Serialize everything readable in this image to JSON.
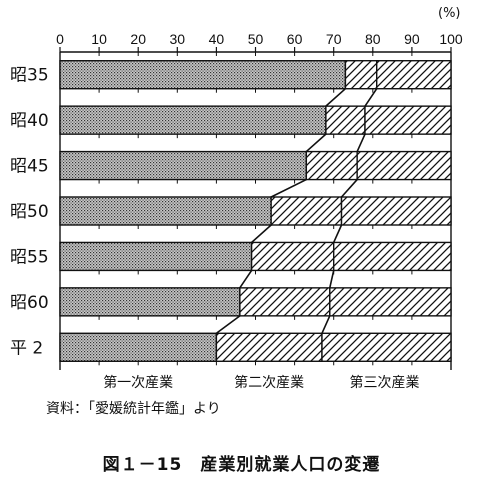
{
  "chart_data": {
    "type": "bar",
    "stacked": true,
    "orientation": "horizontal",
    "categories": [
      "昭35",
      "昭40",
      "昭45",
      "昭50",
      "昭55",
      "昭60",
      "平 2"
    ],
    "series": [
      {
        "name": "第一次産業",
        "values": [
          73,
          68,
          63,
          54,
          49,
          46,
          40
        ],
        "pattern": "dots"
      },
      {
        "name": "第二次産業",
        "values": [
          8,
          10,
          13,
          18,
          21,
          23,
          27
        ],
        "pattern": "hatch"
      },
      {
        "name": "第三次産業",
        "values": [
          19,
          22,
          24,
          28,
          30,
          31,
          33
        ],
        "pattern": "hatch"
      }
    ],
    "series_label_x": [
      20,
      53.5,
      83
    ],
    "x_ticks": [
      0,
      10,
      20,
      30,
      40,
      50,
      60,
      70,
      80,
      90,
      100
    ],
    "xlim": [
      0,
      100
    ],
    "unit": "(%)",
    "legend": "bottom",
    "colors": {
      "bar_border": "#111111",
      "first_sector_fill": "#bdbdbd"
    }
  },
  "source_note": "資料：「愛媛統計年鑑」より",
  "caption": "図１－15　産業別就業人口の変遷"
}
